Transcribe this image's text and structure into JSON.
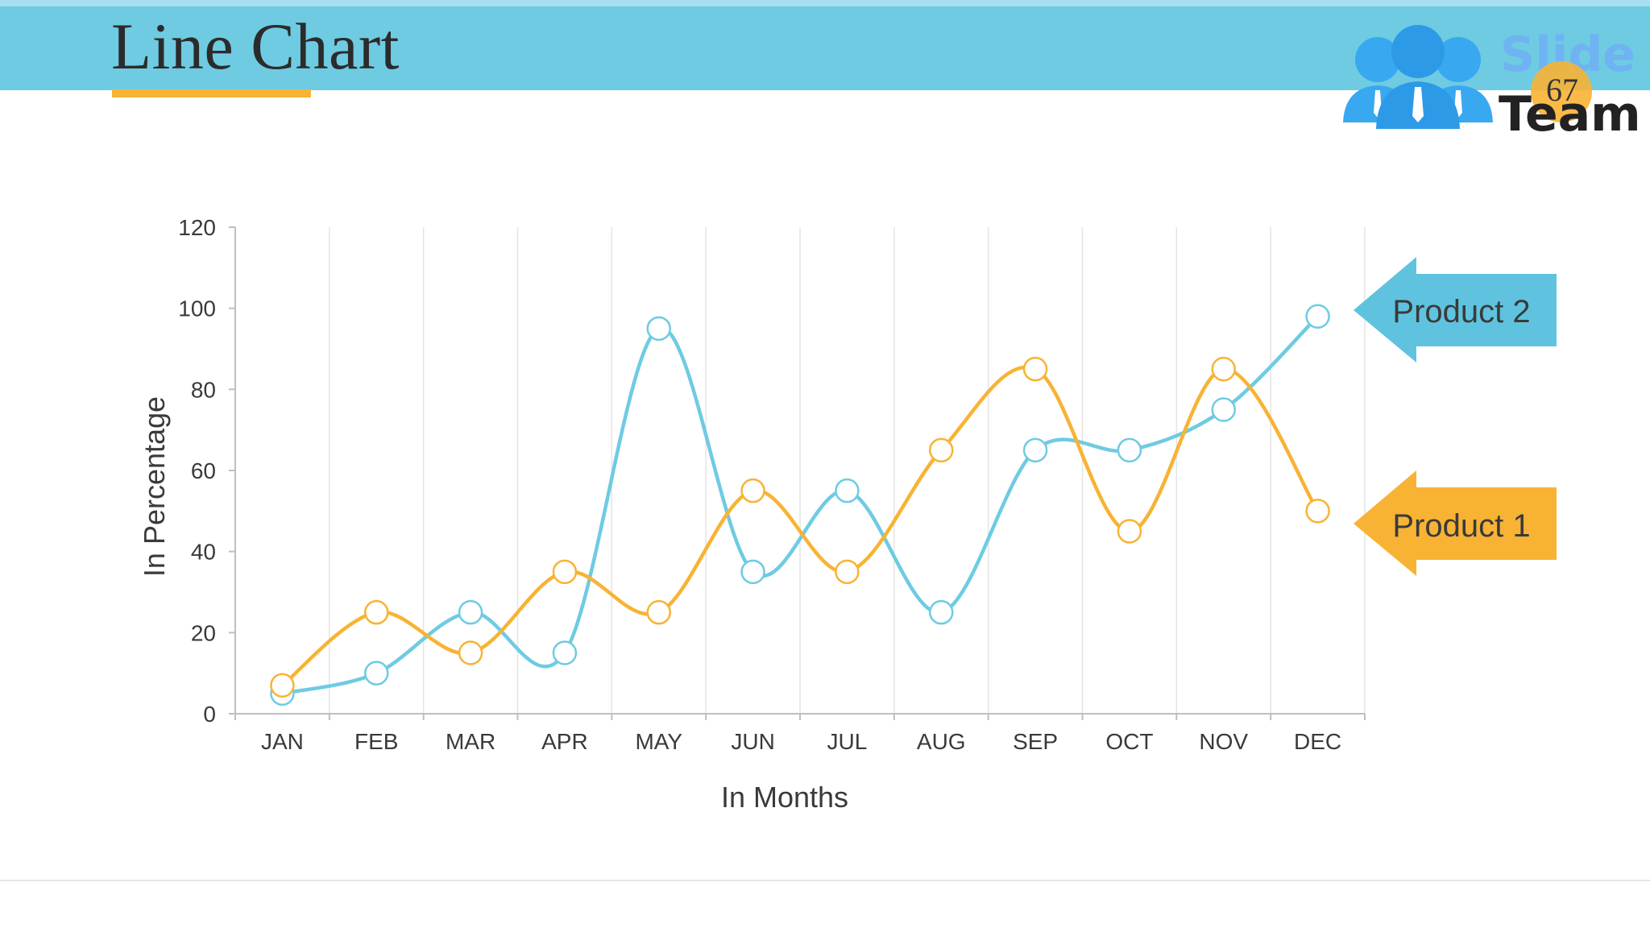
{
  "header": {
    "title": "Line Chart",
    "slide_number": "67"
  },
  "logo": {
    "line1": "Slide",
    "line2": "Team",
    "icon": "people-group-icon"
  },
  "colors": {
    "header_bar": "#6ecbe2",
    "accent_orange": "#f8b334",
    "product1": "#f8b334",
    "product2": "#6ecbe2",
    "callout_product2": "#5fc3df",
    "callout_product1": "#f8b334"
  },
  "chart_data": {
    "type": "line",
    "categories": [
      "JAN",
      "FEB",
      "MAR",
      "APR",
      "MAY",
      "JUN",
      "JUL",
      "AUG",
      "SEP",
      "OCT",
      "NOV",
      "DEC"
    ],
    "series": [
      {
        "name": "Product 1",
        "values": [
          7,
          25,
          15,
          35,
          25,
          55,
          35,
          65,
          85,
          45,
          85,
          50
        ]
      },
      {
        "name": "Product 2",
        "values": [
          5,
          10,
          25,
          15,
          95,
          35,
          55,
          25,
          65,
          65,
          75,
          98
        ]
      }
    ],
    "title": "",
    "xlabel": "In Months",
    "ylabel": "In Percentage",
    "ylim": [
      0,
      120
    ],
    "yticks": [
      0,
      20,
      40,
      60,
      80,
      100,
      120
    ],
    "grid": "vertical",
    "smooth": true,
    "legend": "right"
  },
  "callouts": {
    "product2_label": "Product 2",
    "product1_label": "Product 1"
  }
}
